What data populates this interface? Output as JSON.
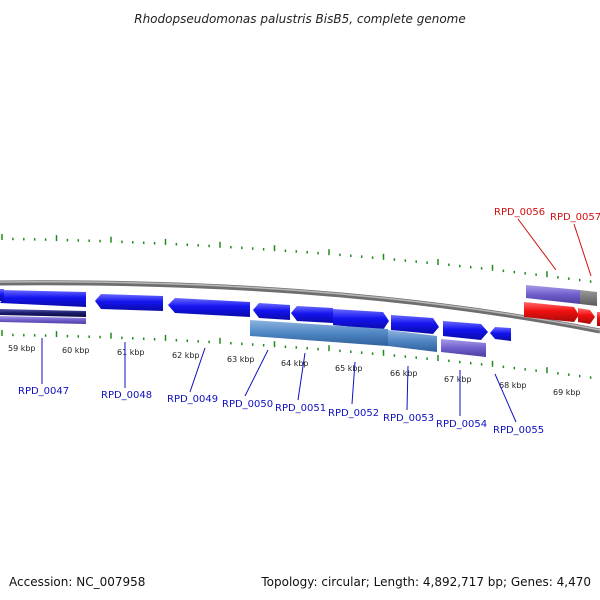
{
  "title": "Rhodopseudomonas palustris BisB5, complete genome",
  "footer": {
    "accession": "Accession: NC_007958",
    "stats": "Topology: circular; Length: 4,892,717 bp; Genes: 4,470"
  },
  "colors": {
    "backbone": "#888888",
    "tick": "#1f8a1f",
    "forward_gene": "#1010ee",
    "reverse_gene": "#ee0000",
    "operon_light": "#5a8ec8",
    "operon_violet": "#7a6fd0",
    "dark_navy": "#1a1a6a",
    "label_blue": "#1010c0",
    "label_red": "#d01010"
  },
  "kbp_labels": [
    "59 kbp",
    "60 kbp",
    "61 kbp",
    "62 kbp",
    "63 kbp",
    "64 kbp",
    "65 kbp",
    "66 kbp",
    "67 kbp",
    "68 kbp",
    "69 kbp"
  ],
  "genes": [
    {
      "id": "RPD_0047",
      "color": "blue"
    },
    {
      "id": "RPD_0048",
      "color": "blue"
    },
    {
      "id": "RPD_0049",
      "color": "blue"
    },
    {
      "id": "RPD_0050",
      "color": "blue"
    },
    {
      "id": "RPD_0051",
      "color": "blue"
    },
    {
      "id": "RPD_0052",
      "color": "blue"
    },
    {
      "id": "RPD_0053",
      "color": "blue"
    },
    {
      "id": "RPD_0054",
      "color": "blue"
    },
    {
      "id": "RPD_0055",
      "color": "blue"
    },
    {
      "id": "RPD_0056",
      "color": "red"
    },
    {
      "id": "RPD_0057",
      "color": "red"
    }
  ]
}
